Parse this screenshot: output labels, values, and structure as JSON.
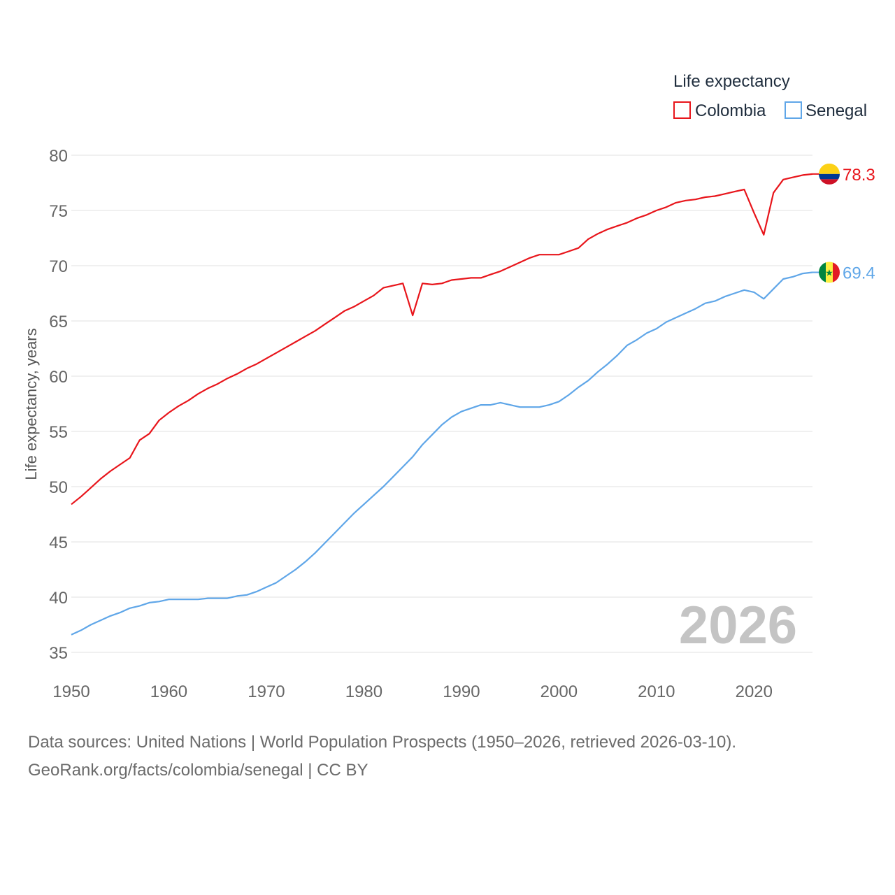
{
  "chart_data": {
    "type": "line",
    "legend_title": "Life expectancy",
    "ylabel": "Life expectancy, years",
    "xlabel": "",
    "xlim": [
      1950,
      2026
    ],
    "ylim": [
      35,
      80
    ],
    "y_ticks": [
      35,
      40,
      45,
      50,
      55,
      60,
      65,
      70,
      75,
      80
    ],
    "x_ticks": [
      1950,
      1960,
      1970,
      1980,
      1990,
      2000,
      2010,
      2020
    ],
    "current_year": "2026",
    "grid": true,
    "legend_position": "top-right",
    "x": [
      1950,
      1951,
      1952,
      1953,
      1954,
      1955,
      1956,
      1957,
      1958,
      1959,
      1960,
      1961,
      1962,
      1963,
      1964,
      1965,
      1966,
      1967,
      1968,
      1969,
      1970,
      1971,
      1972,
      1973,
      1974,
      1975,
      1976,
      1977,
      1978,
      1979,
      1980,
      1981,
      1982,
      1983,
      1984,
      1985,
      1986,
      1987,
      1988,
      1989,
      1990,
      1991,
      1992,
      1993,
      1994,
      1995,
      1996,
      1997,
      1998,
      1999,
      2000,
      2001,
      2002,
      2003,
      2004,
      2005,
      2006,
      2007,
      2008,
      2009,
      2010,
      2011,
      2012,
      2013,
      2014,
      2015,
      2016,
      2017,
      2018,
      2019,
      2020,
      2021,
      2022,
      2023,
      2024,
      2025,
      2026
    ],
    "series": [
      {
        "name": "Colombia",
        "color": "#e8151b",
        "end_label": "78.3",
        "values": [
          48.4,
          49.1,
          49.9,
          50.7,
          51.4,
          52.0,
          52.6,
          54.2,
          54.8,
          56.0,
          56.7,
          57.3,
          57.8,
          58.4,
          58.9,
          59.3,
          59.8,
          60.2,
          60.7,
          61.1,
          61.6,
          62.1,
          62.6,
          63.1,
          63.6,
          64.1,
          64.7,
          65.3,
          65.9,
          66.3,
          66.8,
          67.3,
          68.0,
          68.2,
          68.4,
          65.5,
          68.4,
          68.3,
          68.4,
          68.7,
          68.8,
          68.9,
          68.9,
          69.2,
          69.5,
          69.9,
          70.3,
          70.7,
          71.0,
          71.0,
          71.0,
          71.3,
          71.6,
          72.4,
          72.9,
          73.3,
          73.6,
          73.9,
          74.3,
          74.6,
          75.0,
          75.3,
          75.7,
          75.9,
          76.0,
          76.2,
          76.3,
          76.5,
          76.7,
          76.9,
          74.8,
          72.8,
          76.6,
          77.8,
          78.0,
          78.2,
          78.3
        ],
        "icon": "colombia-flag-icon"
      },
      {
        "name": "Senegal",
        "color": "#5fa6e8",
        "end_label": "69.4",
        "values": [
          36.6,
          37.0,
          37.5,
          37.9,
          38.3,
          38.6,
          39.0,
          39.2,
          39.5,
          39.6,
          39.8,
          39.8,
          39.8,
          39.8,
          39.9,
          39.9,
          39.9,
          40.1,
          40.2,
          40.5,
          40.9,
          41.3,
          41.9,
          42.5,
          43.2,
          44.0,
          44.9,
          45.8,
          46.7,
          47.6,
          48.4,
          49.2,
          50.0,
          50.9,
          51.8,
          52.7,
          53.8,
          54.7,
          55.6,
          56.3,
          56.8,
          57.1,
          57.4,
          57.4,
          57.6,
          57.4,
          57.2,
          57.2,
          57.2,
          57.4,
          57.7,
          58.3,
          59.0,
          59.6,
          60.4,
          61.1,
          61.9,
          62.8,
          63.3,
          63.9,
          64.3,
          64.9,
          65.3,
          65.7,
          66.1,
          66.6,
          66.8,
          67.2,
          67.5,
          67.8,
          67.6,
          67.0,
          67.9,
          68.8,
          69.0,
          69.3,
          69.4
        ],
        "icon": "senegal-flag-icon"
      }
    ]
  },
  "footer": {
    "sources": "Data sources: United Nations | World Population Prospects (1950–2026, retrieved 2026-03-10).",
    "credit": "GeoRank.org/facts/colombia/senegal | CC BY"
  },
  "flags": {
    "colombia": [
      "#fcd116",
      "#003893",
      "#ce1126"
    ],
    "senegal": [
      "#00853f",
      "#fdef42",
      "#e31b23"
    ]
  }
}
